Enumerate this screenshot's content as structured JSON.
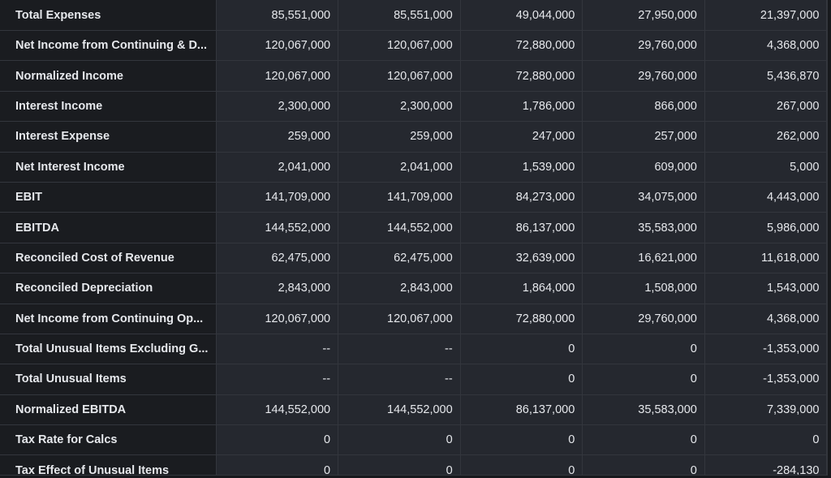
{
  "table": {
    "rows": [
      {
        "label": "Total Expenses",
        "values": [
          "85,551,000",
          "85,551,000",
          "49,044,000",
          "27,950,000",
          "21,397,000"
        ]
      },
      {
        "label": "Net Income from Continuing & D...",
        "values": [
          "120,067,000",
          "120,067,000",
          "72,880,000",
          "29,760,000",
          "4,368,000"
        ]
      },
      {
        "label": "Normalized Income",
        "values": [
          "120,067,000",
          "120,067,000",
          "72,880,000",
          "29,760,000",
          "5,436,870"
        ]
      },
      {
        "label": "Interest Income",
        "values": [
          "2,300,000",
          "2,300,000",
          "1,786,000",
          "866,000",
          "267,000"
        ]
      },
      {
        "label": "Interest Expense",
        "values": [
          "259,000",
          "259,000",
          "247,000",
          "257,000",
          "262,000"
        ]
      },
      {
        "label": "Net Interest Income",
        "values": [
          "2,041,000",
          "2,041,000",
          "1,539,000",
          "609,000",
          "5,000"
        ]
      },
      {
        "label": "EBIT",
        "values": [
          "141,709,000",
          "141,709,000",
          "84,273,000",
          "34,075,000",
          "4,443,000"
        ]
      },
      {
        "label": "EBITDA",
        "values": [
          "144,552,000",
          "144,552,000",
          "86,137,000",
          "35,583,000",
          "5,986,000"
        ]
      },
      {
        "label": "Reconciled Cost of Revenue",
        "values": [
          "62,475,000",
          "62,475,000",
          "32,639,000",
          "16,621,000",
          "11,618,000"
        ]
      },
      {
        "label": "Reconciled Depreciation",
        "values": [
          "2,843,000",
          "2,843,000",
          "1,864,000",
          "1,508,000",
          "1,543,000"
        ]
      },
      {
        "label": "Net Income from Continuing Op...",
        "values": [
          "120,067,000",
          "120,067,000",
          "72,880,000",
          "29,760,000",
          "4,368,000"
        ]
      },
      {
        "label": "Total Unusual Items Excluding G...",
        "values": [
          "--",
          "--",
          "0",
          "0",
          "-1,353,000"
        ]
      },
      {
        "label": "Total Unusual Items",
        "values": [
          "--",
          "--",
          "0",
          "0",
          "-1,353,000"
        ]
      },
      {
        "label": "Normalized EBITDA",
        "values": [
          "144,552,000",
          "144,552,000",
          "86,137,000",
          "35,583,000",
          "7,339,000"
        ]
      },
      {
        "label": "Tax Rate for Calcs",
        "values": [
          "0",
          "0",
          "0",
          "0",
          "0"
        ]
      },
      {
        "label": "Tax Effect of Unusual Items",
        "values": [
          "0",
          "0",
          "0",
          "0",
          "-284,130"
        ]
      }
    ]
  }
}
